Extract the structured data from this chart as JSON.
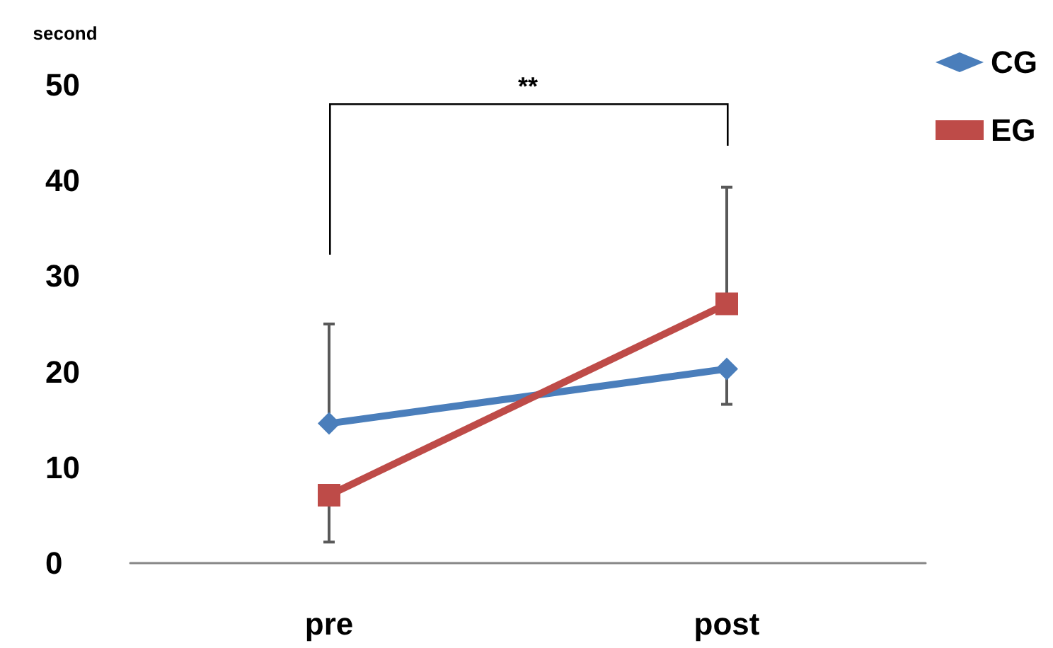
{
  "chart_data": {
    "type": "line",
    "ylabel": "second",
    "categories": [
      "pre",
      "post"
    ],
    "series": [
      {
        "name": "CG",
        "color": "#4a7ebb",
        "values": [
          14.6,
          20.3
        ],
        "marker": "diamond",
        "errors": [
          [
            14.6,
            25.0
          ],
          [
            16.6,
            20.3
          ]
        ]
      },
      {
        "name": "EG",
        "color": "#be4b48",
        "values": [
          7.1,
          27.1
        ],
        "marker": "square",
        "errors": [
          [
            2.2,
            7.1
          ],
          [
            27.1,
            39.3
          ]
        ]
      }
    ],
    "ylim": [
      0,
      50
    ],
    "yticks": [
      0,
      10,
      20,
      30,
      40,
      50
    ],
    "grid": false,
    "legend": "top right",
    "annotations": [
      "**"
    ]
  }
}
